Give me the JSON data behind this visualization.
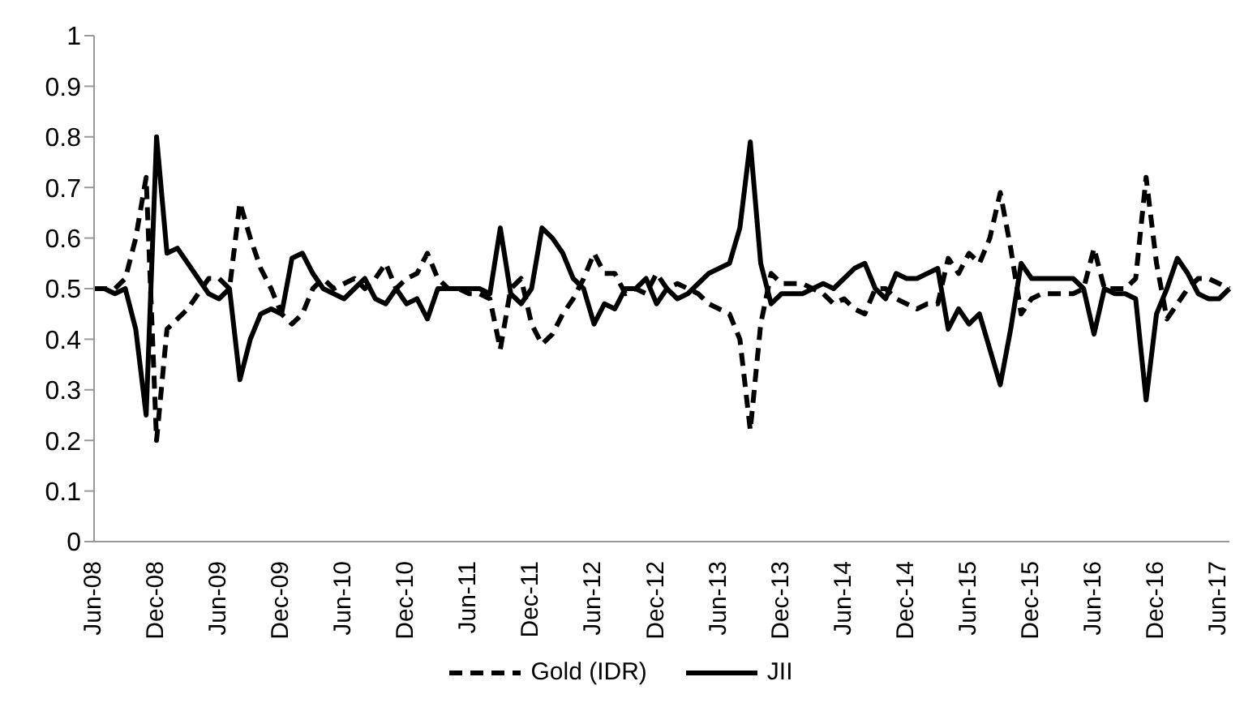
{
  "chart_data": {
    "type": "line",
    "categories": [
      "Jun-08",
      null,
      null,
      null,
      null,
      null,
      "Dec-08",
      null,
      null,
      null,
      null,
      null,
      "Jun-09",
      null,
      null,
      null,
      null,
      null,
      "Dec-09",
      null,
      null,
      null,
      null,
      null,
      "Jun-10",
      null,
      null,
      null,
      null,
      null,
      "Dec-10",
      null,
      null,
      null,
      null,
      null,
      "Jun-11",
      null,
      null,
      null,
      null,
      null,
      "Dec-11",
      null,
      null,
      null,
      null,
      null,
      "Jun-12",
      null,
      null,
      null,
      null,
      null,
      "Dec-12",
      null,
      null,
      null,
      null,
      null,
      "Jun-13",
      null,
      null,
      null,
      null,
      null,
      "Dec-13",
      null,
      null,
      null,
      null,
      null,
      "Jun-14",
      null,
      null,
      null,
      null,
      null,
      "Dec-14",
      null,
      null,
      null,
      null,
      null,
      "Jun-15",
      null,
      null,
      null,
      null,
      null,
      "Dec-15",
      null,
      null,
      null,
      null,
      null,
      "Jun-16",
      null,
      null,
      null,
      null,
      null,
      "Dec-16",
      null,
      null,
      null,
      null,
      null,
      "Jun-17",
      null
    ],
    "series": [
      {
        "name": "Gold (IDR)",
        "color": "#000000",
        "line_style": "dashed",
        "values": [
          0.5,
          0.5,
          0.5,
          0.52,
          0.6,
          0.72,
          0.2,
          0.42,
          0.44,
          0.46,
          0.49,
          0.52,
          0.52,
          0.5,
          0.67,
          0.6,
          0.54,
          0.5,
          0.45,
          0.43,
          0.45,
          0.5,
          0.52,
          0.5,
          0.51,
          0.52,
          0.5,
          0.52,
          0.55,
          0.5,
          0.52,
          0.53,
          0.57,
          0.52,
          0.5,
          0.5,
          0.49,
          0.49,
          0.48,
          0.38,
          0.5,
          0.52,
          0.43,
          0.39,
          0.41,
          0.45,
          0.48,
          0.52,
          0.57,
          0.53,
          0.53,
          0.49,
          0.5,
          0.49,
          0.53,
          0.5,
          0.51,
          0.5,
          0.49,
          0.47,
          0.46,
          0.45,
          0.4,
          0.22,
          0.43,
          0.53,
          0.51,
          0.51,
          0.51,
          0.5,
          0.49,
          0.47,
          0.48,
          0.46,
          0.45,
          0.5,
          0.5,
          0.48,
          0.47,
          0.46,
          0.47,
          0.47,
          0.56,
          0.53,
          0.57,
          0.55,
          0.6,
          0.69,
          0.58,
          0.45,
          0.48,
          0.49,
          0.49,
          0.49,
          0.49,
          0.5,
          0.58,
          0.5,
          0.5,
          0.5,
          0.52,
          0.72,
          0.55,
          0.44,
          0.47,
          0.5,
          0.52,
          0.52,
          0.51,
          0.5
        ]
      },
      {
        "name": "JII",
        "color": "#000000",
        "line_style": "solid",
        "values": [
          0.5,
          0.5,
          0.49,
          0.5,
          0.42,
          0.25,
          0.8,
          0.57,
          0.58,
          0.55,
          0.52,
          0.49,
          0.48,
          0.5,
          0.32,
          0.4,
          0.45,
          0.46,
          0.45,
          0.56,
          0.57,
          0.53,
          0.5,
          0.49,
          0.48,
          0.5,
          0.52,
          0.48,
          0.47,
          0.5,
          0.47,
          0.48,
          0.44,
          0.5,
          0.5,
          0.5,
          0.5,
          0.5,
          0.49,
          0.62,
          0.49,
          0.47,
          0.5,
          0.62,
          0.6,
          0.57,
          0.52,
          0.5,
          0.43,
          0.47,
          0.46,
          0.5,
          0.5,
          0.52,
          0.47,
          0.5,
          0.48,
          0.49,
          0.51,
          0.53,
          0.54,
          0.55,
          0.62,
          0.79,
          0.55,
          0.47,
          0.49,
          0.49,
          0.49,
          0.5,
          0.51,
          0.5,
          0.52,
          0.54,
          0.55,
          0.5,
          0.48,
          0.53,
          0.52,
          0.52,
          0.53,
          0.54,
          0.42,
          0.46,
          0.43,
          0.45,
          0.38,
          0.31,
          0.42,
          0.55,
          0.52,
          0.52,
          0.52,
          0.52,
          0.52,
          0.5,
          0.41,
          0.5,
          0.49,
          0.49,
          0.48,
          0.28,
          0.45,
          0.5,
          0.56,
          0.53,
          0.49,
          0.48,
          0.48,
          0.5
        ]
      }
    ],
    "ylim": [
      0,
      1
    ],
    "yticks": [
      0,
      0.1,
      0.2,
      0.3,
      0.4,
      0.5,
      0.6,
      0.7,
      0.8,
      0.9,
      1
    ],
    "grid": false,
    "legend": "bottom",
    "marker": "none"
  }
}
